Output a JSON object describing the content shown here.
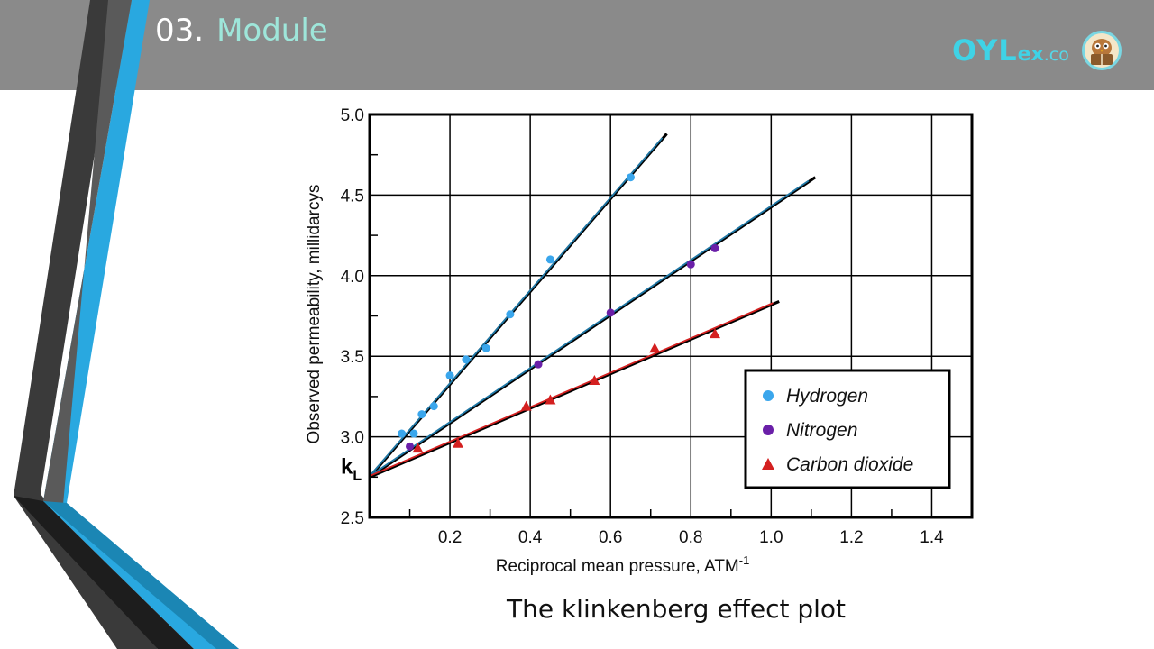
{
  "slide": {
    "number": "03.",
    "title": "Module",
    "caption": "The klinkenberg effect plot"
  },
  "logo": {
    "brand_main": "OYL",
    "brand_mid": "ex",
    "brand_suffix": ".co",
    "mascot_icon": "reading-owl-icon"
  },
  "colors": {
    "header_bar": "#8a8a8a",
    "accent_blue": "#29a8e0",
    "accent_dark": "#333333",
    "title_text": "#9ee6da",
    "hydrogen": "#3aa6ec",
    "nitrogen": "#6a1fa8",
    "carbon_dioxide": "#d42020",
    "trend_line_black": "#000000",
    "trend_line_blue": "#1f78a6",
    "trend_line_red": "#d42020"
  },
  "chart_data": {
    "type": "scatter",
    "title": "",
    "xlabel": "Reciprocal mean pressure, ATM",
    "xlabel_superscript": "-1",
    "ylabel": "Observed permeability, millidarcys",
    "xlim": [
      0,
      1.5
    ],
    "ylim": [
      2.5,
      5.0
    ],
    "x_ticks": [
      "0.2",
      "0.4",
      "0.6",
      "0.8",
      "1.0",
      "1.2",
      "1.4"
    ],
    "y_ticks": [
      "2.5",
      "3.0",
      "3.5",
      "4.0",
      "4.5",
      "5.0"
    ],
    "grid": true,
    "legend_position": "bottom-right",
    "intercept_label": "k",
    "intercept_label_sub": "L",
    "intercept_value": 2.75,
    "series": [
      {
        "name": "Hydrogen",
        "marker": "circle",
        "points": [
          [
            0.08,
            3.02
          ],
          [
            0.11,
            3.02
          ],
          [
            0.13,
            3.14
          ],
          [
            0.16,
            3.19
          ],
          [
            0.2,
            3.38
          ],
          [
            0.24,
            3.48
          ],
          [
            0.29,
            3.55
          ],
          [
            0.35,
            3.76
          ],
          [
            0.45,
            4.1
          ],
          [
            0.65,
            4.61
          ]
        ],
        "fit_line": [
          [
            0,
            2.75
          ],
          [
            0.74,
            4.88
          ]
        ]
      },
      {
        "name": "Nitrogen",
        "marker": "circle",
        "points": [
          [
            0.1,
            2.94
          ],
          [
            0.42,
            3.45
          ],
          [
            0.6,
            3.77
          ],
          [
            0.8,
            4.07
          ],
          [
            0.86,
            4.17
          ]
        ],
        "fit_line": [
          [
            0,
            2.75
          ],
          [
            1.11,
            4.61
          ]
        ]
      },
      {
        "name": "Carbon dioxide",
        "marker": "triangle",
        "points": [
          [
            0.12,
            2.93
          ],
          [
            0.22,
            2.96
          ],
          [
            0.39,
            3.19
          ],
          [
            0.45,
            3.23
          ],
          [
            0.56,
            3.35
          ],
          [
            0.71,
            3.55
          ],
          [
            0.86,
            3.64
          ]
        ],
        "fit_line": [
          [
            0,
            2.75
          ],
          [
            1.02,
            3.84
          ]
        ]
      }
    ]
  }
}
